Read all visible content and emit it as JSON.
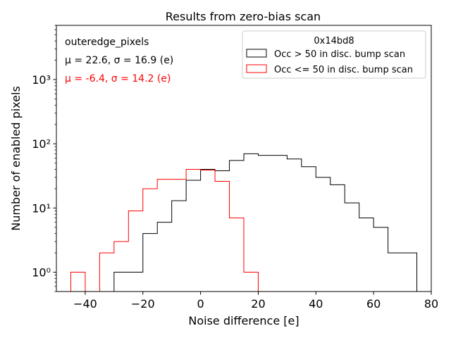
{
  "chart_data": {
    "type": "histogram",
    "title": "Results from zero-bias scan",
    "xlabel": "Noise difference [e]",
    "ylabel": "Number of enabled pixels",
    "xlim": [
      -50,
      80
    ],
    "ylim": [
      0.5,
      7000
    ],
    "yscale": "log",
    "bin_width": 5,
    "xticks": [
      -40,
      -20,
      0,
      20,
      40,
      60,
      80
    ],
    "xtick_labels": [
      "−40",
      "−20",
      "0",
      "20",
      "40",
      "60",
      "80"
    ],
    "yticks": [
      1,
      10,
      100,
      1000
    ],
    "ytick_labels": [
      "10⁰",
      "10¹",
      "10²",
      "10³"
    ],
    "annotations": [
      {
        "text": "outeredge_pixels",
        "color": "#000000"
      },
      {
        "text": "μ = 22.6, σ = 16.9 (e)",
        "color": "#000000"
      },
      {
        "text": "μ = -6.4, σ = 14.2 (e)",
        "color": "#ff0000"
      }
    ],
    "legend": {
      "title": "0x14bd8",
      "position": "top-right",
      "entries": [
        {
          "label": "Occ > 50 in disc. bump scan",
          "color": "#000000"
        },
        {
          "label": "Occ <= 50 in disc. bump scan",
          "color": "#ff0000"
        }
      ]
    },
    "series": [
      {
        "name": "Occ > 50 in disc. bump scan",
        "color": "#000000",
        "bin_edges": [
          -30,
          -25,
          -20,
          -15,
          -10,
          -5,
          0,
          5,
          10,
          15,
          20,
          25,
          30,
          35,
          40,
          45,
          50,
          55,
          60,
          65,
          70,
          75
        ],
        "counts": [
          1,
          1,
          4,
          6,
          13,
          27,
          40,
          38,
          55,
          70,
          66,
          66,
          58,
          44,
          30,
          23,
          12,
          7,
          5,
          2,
          2
        ]
      },
      {
        "name": "Occ <= 50 in disc. bump scan",
        "color": "#ff0000",
        "bin_edges": [
          -45,
          -40,
          -35,
          -30,
          -25,
          -20,
          -15,
          -10,
          -5,
          0,
          5,
          10,
          15,
          20
        ],
        "counts": [
          1,
          0,
          2,
          3,
          9,
          20,
          28,
          28,
          40,
          39,
          26,
          7,
          1
        ]
      }
    ]
  }
}
